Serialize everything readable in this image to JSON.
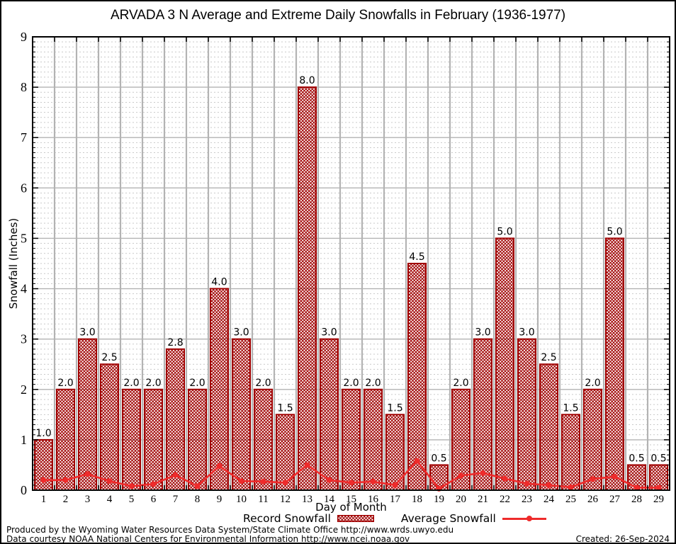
{
  "title": "ARVADA 3 N Average and Extreme Daily Snowfalls in February (1936-1977)",
  "chart_data": {
    "type": "bar",
    "title": "ARVADA 3 N Average and Extreme Daily Snowfalls in February (1936-1977)",
    "xlabel": "Day of Month",
    "ylabel": "Snowfall (Inches)",
    "ylim": [
      0,
      9
    ],
    "y_major_step": 1,
    "y_minor_step": 0.1,
    "grid": "major solid gray, minor dotted, vertical line at each day boundary",
    "legend_position": "bottom",
    "categories": [
      1,
      2,
      3,
      4,
      5,
      6,
      7,
      8,
      9,
      10,
      11,
      12,
      13,
      14,
      15,
      16,
      17,
      18,
      19,
      20,
      21,
      22,
      23,
      24,
      25,
      26,
      27,
      28,
      29
    ],
    "series": [
      {
        "name": "Record Snowfall",
        "type": "bar",
        "values": [
          1.0,
          2.0,
          3.0,
          2.5,
          2.0,
          2.0,
          2.8,
          2.0,
          4.0,
          3.0,
          2.0,
          1.5,
          8.0,
          3.0,
          2.0,
          2.0,
          1.5,
          4.5,
          0.5,
          2.0,
          3.0,
          5.0,
          3.0,
          2.5,
          1.5,
          2.0,
          5.0,
          0.5,
          0.5
        ],
        "data_labels": [
          "1.0",
          "2.0",
          "3.0",
          "2.5",
          "2.0",
          "2.0",
          "2.8",
          "2.0",
          "4.0",
          "3.0",
          "2.0",
          "1.5",
          "8.0",
          "3.0",
          "2.0",
          "2.0",
          "1.5",
          "4.5",
          "0.5",
          "2.0",
          "3.0",
          "5.0",
          "3.0",
          "2.5",
          "1.5",
          "2.0",
          "5.0",
          "0.5",
          "0.5"
        ],
        "color": "#a00000",
        "fill": "crosshatch"
      },
      {
        "name": "Average Snowfall",
        "type": "line",
        "values": [
          0.2,
          0.2,
          0.32,
          0.18,
          0.08,
          0.12,
          0.3,
          0.08,
          0.48,
          0.18,
          0.17,
          0.15,
          0.5,
          0.2,
          0.15,
          0.17,
          0.1,
          0.58,
          0.03,
          0.29,
          0.34,
          0.23,
          0.13,
          0.1,
          0.06,
          0.22,
          0.27,
          0.05,
          0.05
        ],
        "color": "#ee2b2b",
        "marker": "filled-circle"
      }
    ]
  },
  "colors": {
    "bar": "#a00000",
    "line": "#ee2b2b",
    "grid_major": "#b3b3b3",
    "grid_minor": "#c9c9c9",
    "frame": "#000000"
  },
  "footer": {
    "line1": "Produced by the Wyoming Water Resources Data System/State Climate Office http://www.wrds.uwyo.edu",
    "line2": "Data courtesy NOAA National Centers for Environmental Information http://www.ncei.noaa.gov",
    "created": "Created: 26-Sep-2024"
  }
}
